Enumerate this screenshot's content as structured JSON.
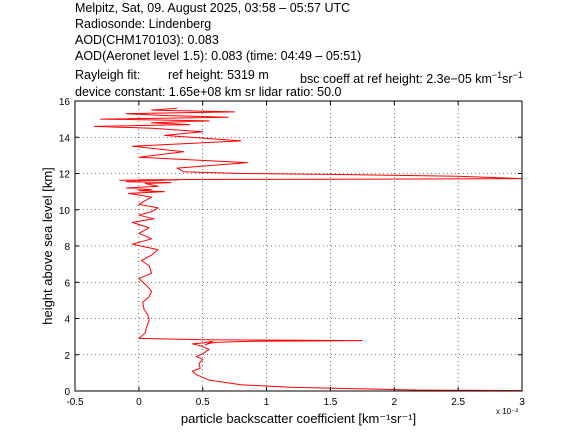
{
  "header": {
    "line1": "Melpitz, Sat, 09. August 2025, 03:58 – 05:57 UTC",
    "line2": "Radiosonde: Lindenberg",
    "line3": "AOD(CHM170103): 0.083",
    "line4": "AOD(Aeronet level 1.5): 0.083   (time: 04:49 – 05:51)",
    "rayleigh_label": "Rayleigh fit:",
    "ref_height": "ref height: 5319 m",
    "bsc_prefix": "bsc coeff at ref height: 2.3e−05 km",
    "device": "device constant: 1.65e+08 km sr     lidar ratio: 50.0"
  },
  "chart_data": {
    "type": "line",
    "xlabel": "particle backscatter coefficient [km⁻¹sr⁻¹]",
    "ylabel": "height above sea level [km]",
    "x_multiplier": "x 10⁻³",
    "xlim": [
      -0.5,
      3
    ],
    "ylim": [
      0,
      16
    ],
    "x_ticks": [
      -0.5,
      0,
      0.5,
      1,
      1.5,
      2,
      2.5,
      3
    ],
    "y_ticks": [
      0,
      2,
      4,
      6,
      8,
      10,
      12,
      14,
      16
    ],
    "grid": true,
    "line_color": "#ff0000",
    "series": [
      {
        "x": [
          3.0,
          2.2,
          1.2,
          0.8,
          0.55,
          0.45,
          0.42,
          0.48,
          0.47,
          0.5,
          0.45,
          0.5,
          0.55,
          0.48,
          0.42,
          0.5,
          0.58,
          0.52,
          0.55,
          0.6,
          0.75,
          0.9,
          1.75,
          0.5,
          0.0,
          0.05,
          0.06,
          0.08,
          0.07,
          0.04,
          0.03,
          0.08,
          0.1,
          0.05,
          0.0,
          0.1,
          0.08,
          0.02,
          0.1,
          0.15,
          -0.05,
          0.1,
          0.0,
          0.08,
          -0.05,
          0.12,
          0.0,
          0.1,
          0.15,
          0.0,
          0.05,
          0.1,
          -0.08,
          0.2,
          0.0,
          0.1,
          -0.1,
          0.15,
          0.05,
          0.25,
          -0.1,
          0.1,
          0.2,
          -0.15,
          0.3,
          0.0,
          0.2,
          0.4,
          1.5,
          2.5,
          3.0,
          2.5,
          1.5,
          0.8,
          0.35,
          0.3,
          0.85,
          0.0,
          0.35,
          -0.05,
          0.8,
          0.2,
          0.5,
          0.1,
          -0.35,
          0.4,
          0.1,
          0.55,
          -0.3,
          0.7,
          0.2,
          -0.1,
          0.75,
          0.1,
          0.3
        ],
        "y": [
          0.02,
          0.05,
          0.2,
          0.35,
          0.6,
          0.9,
          1.1,
          1.25,
          1.5,
          1.75,
          1.9,
          2.05,
          2.3,
          2.5,
          2.6,
          2.65,
          2.75,
          2.55,
          2.62,
          2.68,
          2.72,
          2.75,
          2.78,
          2.83,
          2.9,
          3.2,
          3.5,
          3.9,
          4.2,
          4.5,
          4.9,
          5.2,
          5.5,
          5.9,
          6.2,
          6.5,
          6.9,
          7.2,
          7.5,
          7.8,
          8.1,
          8.4,
          8.7,
          9.0,
          9.3,
          9.5,
          9.7,
          9.9,
          10.1,
          10.3,
          10.5,
          10.7,
          10.9,
          11.0,
          11.05,
          11.1,
          11.2,
          11.3,
          11.45,
          11.5,
          11.55,
          11.6,
          11.62,
          11.63,
          11.64,
          11.65,
          11.66,
          11.67,
          11.68,
          11.7,
          11.72,
          11.85,
          11.95,
          12.0,
          12.1,
          12.3,
          12.6,
          12.9,
          13.2,
          13.5,
          13.8,
          14.1,
          14.3,
          14.5,
          14.6,
          14.7,
          14.8,
          14.9,
          15.0,
          15.1,
          15.2,
          15.3,
          15.4,
          15.5,
          15.6
        ]
      }
    ]
  }
}
